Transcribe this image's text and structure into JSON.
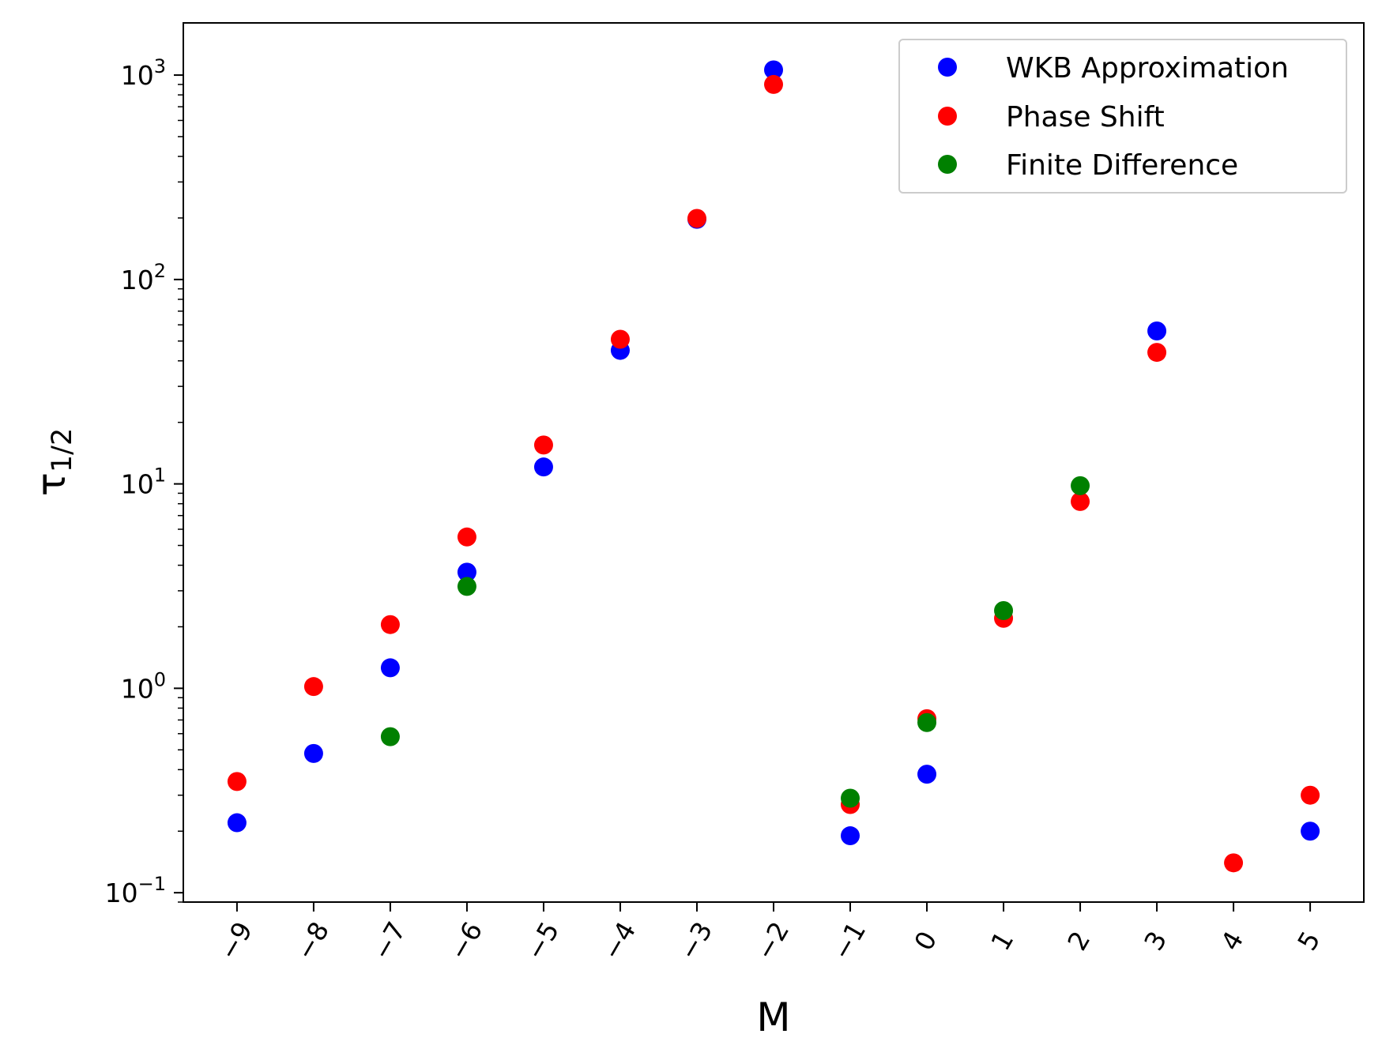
{
  "chart_data": {
    "type": "scatter",
    "xlabel": "M",
    "ylabel_main": "τ",
    "ylabel_sub": "1/2",
    "yscale": "log",
    "ylim": [
      0.09,
      1800
    ],
    "xlim": [
      -9.7,
      5.7
    ],
    "grid": false,
    "legend_position": "top-right",
    "x_ticks": [
      -9,
      -8,
      -7,
      -6,
      -5,
      -4,
      -3,
      -2,
      -1,
      0,
      1,
      2,
      3,
      4,
      5
    ],
    "x_tick_labels": [
      "−9",
      "−8",
      "−7",
      "−6",
      "−5",
      "−4",
      "−3",
      "−2",
      "−1",
      "0",
      "1",
      "2",
      "3",
      "4",
      "5"
    ],
    "y_ticks": [
      {
        "value": 0.1,
        "base": "10",
        "exp": "−1"
      },
      {
        "value": 1,
        "base": "10",
        "exp": "0"
      },
      {
        "value": 10,
        "base": "10",
        "exp": "1"
      },
      {
        "value": 100,
        "base": "10",
        "exp": "2"
      },
      {
        "value": 1000,
        "base": "10",
        "exp": "3"
      }
    ],
    "series": [
      {
        "name": "WKB Approximation",
        "color": "#0000ff",
        "points": [
          {
            "x": -9,
            "y": 0.22
          },
          {
            "x": -8,
            "y": 0.48
          },
          {
            "x": -7,
            "y": 1.26
          },
          {
            "x": -6,
            "y": 3.7
          },
          {
            "x": -5,
            "y": 12.1
          },
          {
            "x": -4,
            "y": 45
          },
          {
            "x": -3,
            "y": 197
          },
          {
            "x": -2,
            "y": 1060
          },
          {
            "x": -1,
            "y": 0.19
          },
          {
            "x": 0,
            "y": 0.38
          },
          {
            "x": 3,
            "y": 56
          },
          {
            "x": 5,
            "y": 0.2
          }
        ]
      },
      {
        "name": "Phase Shift",
        "color": "#ff0000",
        "points": [
          {
            "x": -9,
            "y": 0.35
          },
          {
            "x": -8,
            "y": 1.02
          },
          {
            "x": -7,
            "y": 2.05
          },
          {
            "x": -6,
            "y": 5.5
          },
          {
            "x": -5,
            "y": 15.5
          },
          {
            "x": -4,
            "y": 51
          },
          {
            "x": -3,
            "y": 199
          },
          {
            "x": -2,
            "y": 900
          },
          {
            "x": -1,
            "y": 0.27
          },
          {
            "x": 0,
            "y": 0.71
          },
          {
            "x": 1,
            "y": 2.2
          },
          {
            "x": 2,
            "y": 8.2
          },
          {
            "x": 3,
            "y": 44
          },
          {
            "x": 4,
            "y": 0.14
          },
          {
            "x": 5,
            "y": 0.3
          }
        ]
      },
      {
        "name": "Finite Difference",
        "color": "#008000",
        "points": [
          {
            "x": -7,
            "y": 0.58
          },
          {
            "x": -6,
            "y": 3.15
          },
          {
            "x": -1,
            "y": 0.29
          },
          {
            "x": 0,
            "y": 0.68
          },
          {
            "x": 1,
            "y": 2.4
          },
          {
            "x": 2,
            "y": 9.8
          }
        ]
      }
    ]
  }
}
